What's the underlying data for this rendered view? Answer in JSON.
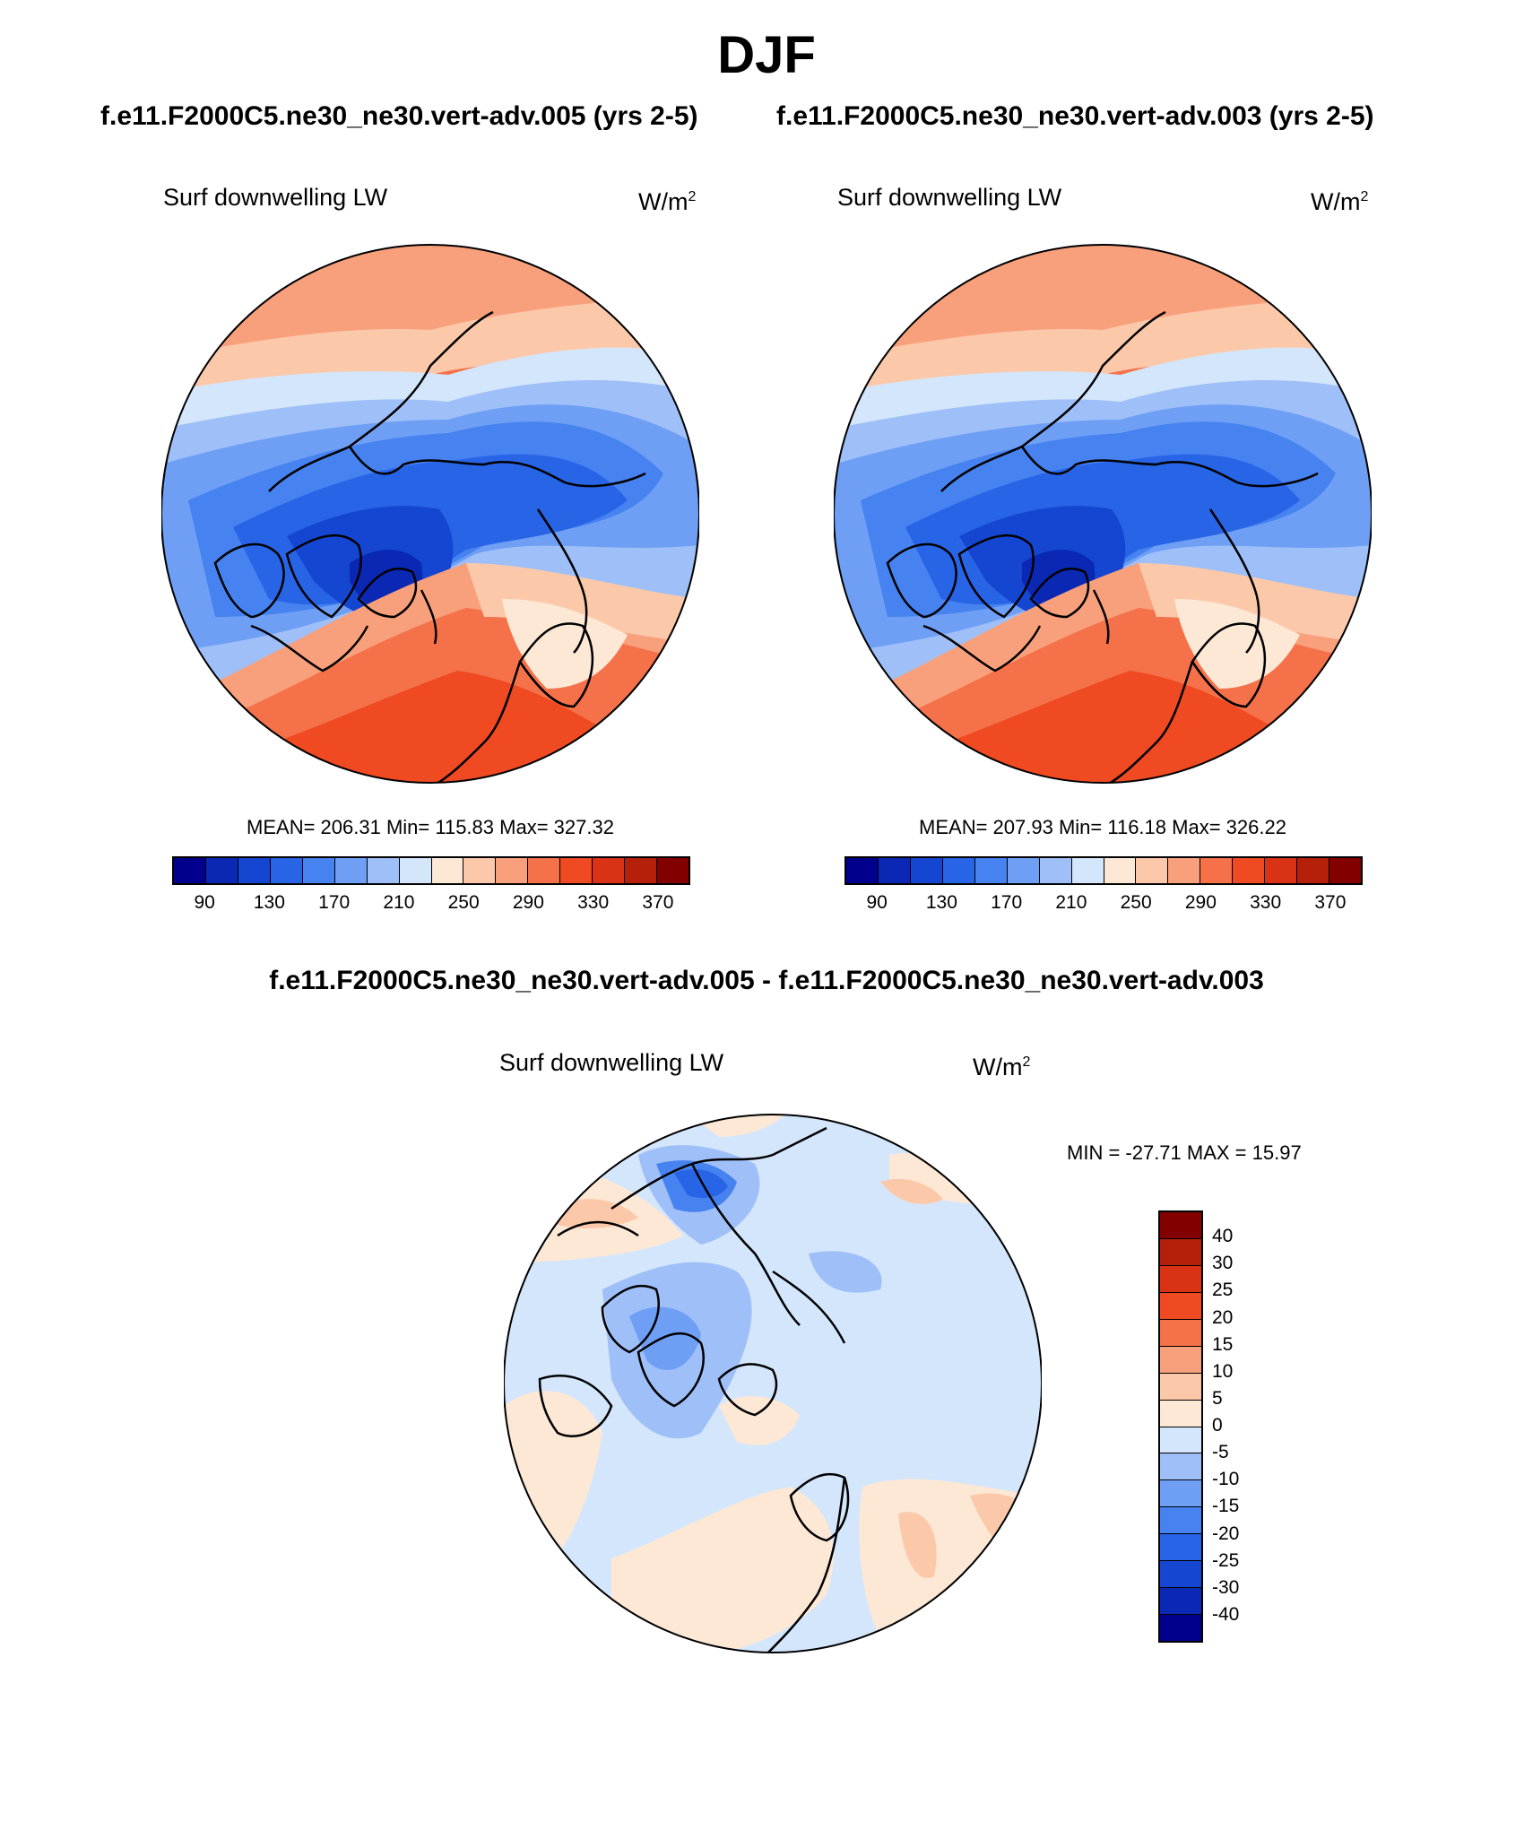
{
  "season_title": "DJF",
  "case_a_title": "f.e11.F2000C5.ne30_ne30.vert-adv.005 (yrs 2-5)",
  "case_b_title": "f.e11.F2000C5.ne30_ne30.vert-adv.003 (yrs 2-5)",
  "diff_title": "f.e11.F2000C5.ne30_ne30.vert-adv.005 - f.e11.F2000C5.ne30_ne30.vert-adv.003",
  "variable_label": "Surf downwelling LW",
  "units_base": "W/m",
  "units_exp": "2",
  "panel_a": {
    "stats": "MEAN= 206.31  Min= 115.83  Max= 327.32"
  },
  "panel_b": {
    "stats": "MEAN= 207.93  Min= 116.18  Max= 326.22"
  },
  "panel_diff": {
    "stats": "MIN = -27.71 MAX =  15.97"
  },
  "abs_colorbar": {
    "colors": [
      "#00008c",
      "#0a28b4",
      "#1446d2",
      "#2864e6",
      "#4682f0",
      "#6e9ff5",
      "#9fbff8",
      "#d4e6fb",
      "#fde8d6",
      "#fbc9aa",
      "#f8a07c",
      "#f4714a",
      "#ef4a22",
      "#da3214",
      "#b4200a",
      "#820000"
    ],
    "tick_labels": [
      "90",
      "130",
      "170",
      "210",
      "250",
      "290",
      "330",
      "370"
    ]
  },
  "diff_colorbar": {
    "colors": [
      "#820000",
      "#b4200a",
      "#da3214",
      "#ef4a22",
      "#f4714a",
      "#f8a07c",
      "#fbc9aa",
      "#fde8d6",
      "#d4e6fb",
      "#9fbff8",
      "#6e9ff5",
      "#4682f0",
      "#2864e6",
      "#1446d2",
      "#0a28b4",
      "#00008c"
    ],
    "tick_labels": [
      "40",
      "30",
      "25",
      "20",
      "15",
      "10",
      "5",
      "0",
      "-5",
      "-10",
      "-15",
      "-20",
      "-25",
      "-30",
      "-40"
    ]
  }
}
